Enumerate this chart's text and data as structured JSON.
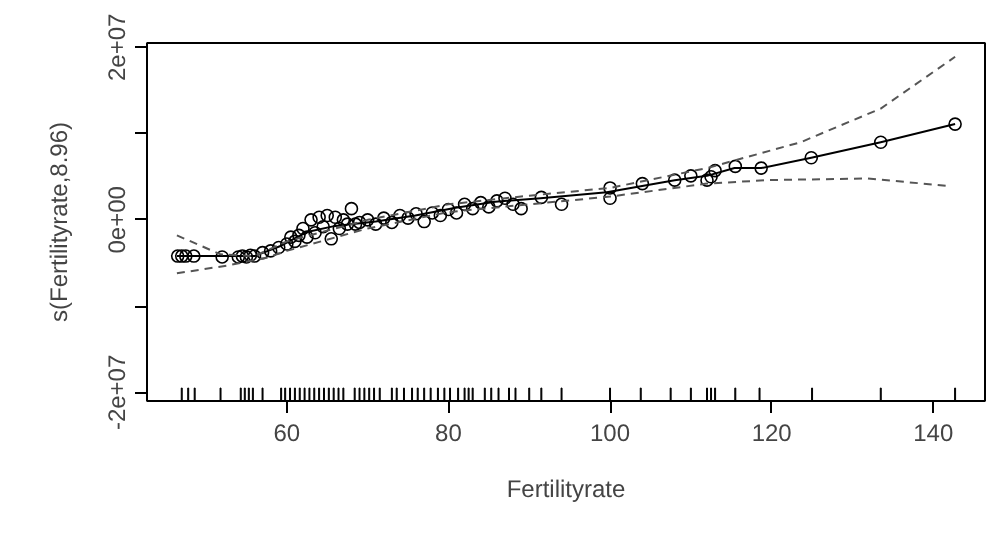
{
  "chart_data": {
    "type": "scatter",
    "xlabel": "Fertilityrate",
    "ylabel": "s(Fertilityrate,8.96)",
    "xlim": [
      42.7,
      146.4
    ],
    "ylim": [
      -21000000,
      20500000
    ],
    "xticks": [
      60,
      80,
      100,
      120,
      140
    ],
    "yticks": [
      {
        "value": -20000000,
        "label": "-2e+07"
      },
      {
        "value": -10000000,
        "label": null
      },
      {
        "value": 0,
        "label": "0e+00"
      },
      {
        "value": 10000000,
        "label": null
      },
      {
        "value": 20000000,
        "label": "2e+07"
      }
    ],
    "grid": false,
    "series": [
      {
        "marker": "circle",
        "color": "#000000",
        "x": [
          46.5,
          47,
          47.5,
          48.5,
          52,
          54,
          54.5,
          55,
          55.5,
          56,
          57,
          58,
          59,
          60,
          60.5,
          61,
          61.5,
          62,
          62.5,
          63,
          63.5,
          64,
          64.5,
          65,
          65.5,
          66,
          66.5,
          67,
          67.5,
          68,
          68.5,
          69,
          70,
          71,
          72,
          73,
          74,
          75,
          76,
          77,
          78,
          79,
          80,
          81,
          82,
          83,
          84,
          85,
          86,
          87,
          88,
          89,
          91.5,
          94,
          100,
          100,
          104,
          108,
          110,
          112,
          112.5,
          113,
          115.5,
          118.7,
          124.9,
          133.5,
          142.7
        ],
        "values": [
          -4200000,
          -4200000,
          -4200000,
          -4200000,
          -4300000,
          -4300000,
          -4200000,
          -4300000,
          -4100000,
          -4200000,
          -3800000,
          -3600000,
          -3200000,
          -2800000,
          -2000000,
          -2500000,
          -1800000,
          -1000000,
          -2000000,
          0,
          -1500000,
          300000,
          -800000,
          500000,
          -2200000,
          300000,
          -1000000,
          0,
          -500000,
          1300000,
          -500000,
          -300000,
          0,
          -500000,
          200000,
          -300000,
          500000,
          200000,
          700000,
          -200000,
          800000,
          500000,
          1200000,
          800000,
          1800000,
          1300000,
          2000000,
          1500000,
          2200000,
          2500000,
          1800000,
          1300000,
          2600000,
          1800000,
          3700000,
          2500000,
          4200000,
          4600000,
          5100000,
          4600000,
          5000000,
          5700000,
          6200000,
          6000000,
          7200000,
          9000000,
          11100000
        ]
      },
      {
        "type": "line",
        "marker": "none",
        "line_style": "solid",
        "color": "#000000",
        "x": [
          46.4,
          51.8,
          56.0,
          59.3,
          62.5,
          66.0,
          71.0,
          75.9,
          80.9,
          85.8,
          91.4,
          99.6,
          103.8,
          108.0,
          112.0,
          115.4,
          118.7,
          124.9,
          133.5,
          142.7
        ],
        "values": [
          -4200000,
          -4200000,
          -4200000,
          -3000000,
          -1400000,
          -700000,
          -200000,
          500000,
          1400000,
          2100000,
          2500000,
          3200000,
          3900000,
          4600000,
          5100000,
          6000000,
          6000000,
          7200000,
          9000000,
          11100000
        ]
      },
      {
        "type": "line",
        "marker": "none",
        "line_style": "dashed",
        "color": "#555555",
        "x": [
          46.4,
          51.8,
          56.0,
          60,
          70,
          80,
          90,
          100,
          112,
          123.6,
          133.5,
          142.7
        ],
        "values": [
          -1800000,
          -4000000,
          -4200000,
          -2500000,
          0,
          1800000,
          2800000,
          3700000,
          6000000,
          9000000,
          12900000,
          18900000
        ]
      },
      {
        "type": "line",
        "marker": "none",
        "line_style": "dashed",
        "color": "#555555",
        "x": [
          46.4,
          52.6,
          57.5,
          60,
          70,
          80,
          90,
          100,
          112,
          119.4,
          131.8,
          142.2
        ],
        "values": [
          -6200000,
          -5300000,
          -4400000,
          -3600000,
          -1000000,
          900000,
          1800000,
          2700000,
          4200000,
          4600000,
          4800000,
          3900000
        ]
      },
      {
        "type": "bar",
        "color": "#000000",
        "base": [
          -21000000,
          -21000000,
          -21000000,
          -21000000,
          -21000000,
          -21000000,
          -21000000,
          -21000000,
          -21000000,
          -21000000,
          -21000000,
          -21000000,
          -21000000,
          -21000000,
          -21000000,
          -21000000,
          -21000000,
          -21000000,
          -21000000,
          -21000000,
          -21000000,
          -21000000,
          -21000000,
          -21000000,
          -21000000,
          -21000000,
          -21000000,
          -21000000,
          -21000000,
          -21000000,
          -21000000,
          -21000000,
          -21000000,
          -21000000,
          -21000000,
          -21000000,
          -21000000,
          -21000000,
          -21000000,
          -21000000,
          -21000000,
          -21000000,
          -21000000,
          -21000000,
          -21000000,
          -21000000,
          -21000000,
          -21000000,
          -21000000,
          -21000000,
          -21000000,
          -21000000,
          -21000000,
          -21000000,
          -21000000,
          -21000000,
          -21000000,
          -21000000,
          -21000000,
          -21000000,
          -21000000,
          -21000000,
          -21000000
        ],
        "x": [
          47,
          47.8,
          48.6,
          51.8,
          54.3,
          54.8,
          55.3,
          55.8,
          57,
          59.3,
          59.8,
          60.4,
          61,
          61.6,
          62.2,
          62.8,
          63.4,
          64,
          64.6,
          65.2,
          65.8,
          66.4,
          67,
          68.4,
          69,
          69.6,
          70.2,
          70.8,
          71.5,
          73,
          73.6,
          74.5,
          75.5,
          76.2,
          77,
          77.8,
          78.7,
          79.5,
          80.2,
          81.2,
          82,
          82.5,
          83,
          84.5,
          85.3,
          86.2,
          87.5,
          88.3,
          90,
          91.5,
          94,
          100,
          103.8,
          107.5,
          110,
          112,
          112.5,
          113,
          115.5,
          118.5,
          125,
          133.5,
          142.7
        ],
        "values": [
          1500000,
          1500000,
          1500000,
          1500000,
          1500000,
          1500000,
          1500000,
          1500000,
          1500000,
          1500000,
          1500000,
          1500000,
          1500000,
          1500000,
          1500000,
          1500000,
          1500000,
          1500000,
          1500000,
          1500000,
          1500000,
          1500000,
          1500000,
          1500000,
          1500000,
          1500000,
          1500000,
          1500000,
          1500000,
          1500000,
          1500000,
          1500000,
          1500000,
          1500000,
          1500000,
          1500000,
          1500000,
          1500000,
          1500000,
          1500000,
          1500000,
          1500000,
          1500000,
          1500000,
          1500000,
          1500000,
          1500000,
          1500000,
          1500000,
          1500000,
          1500000,
          1500000,
          1500000,
          1500000,
          1500000,
          1500000,
          1500000,
          1500000,
          1500000,
          1500000,
          1500000,
          1500000,
          1500000
        ]
      }
    ]
  }
}
